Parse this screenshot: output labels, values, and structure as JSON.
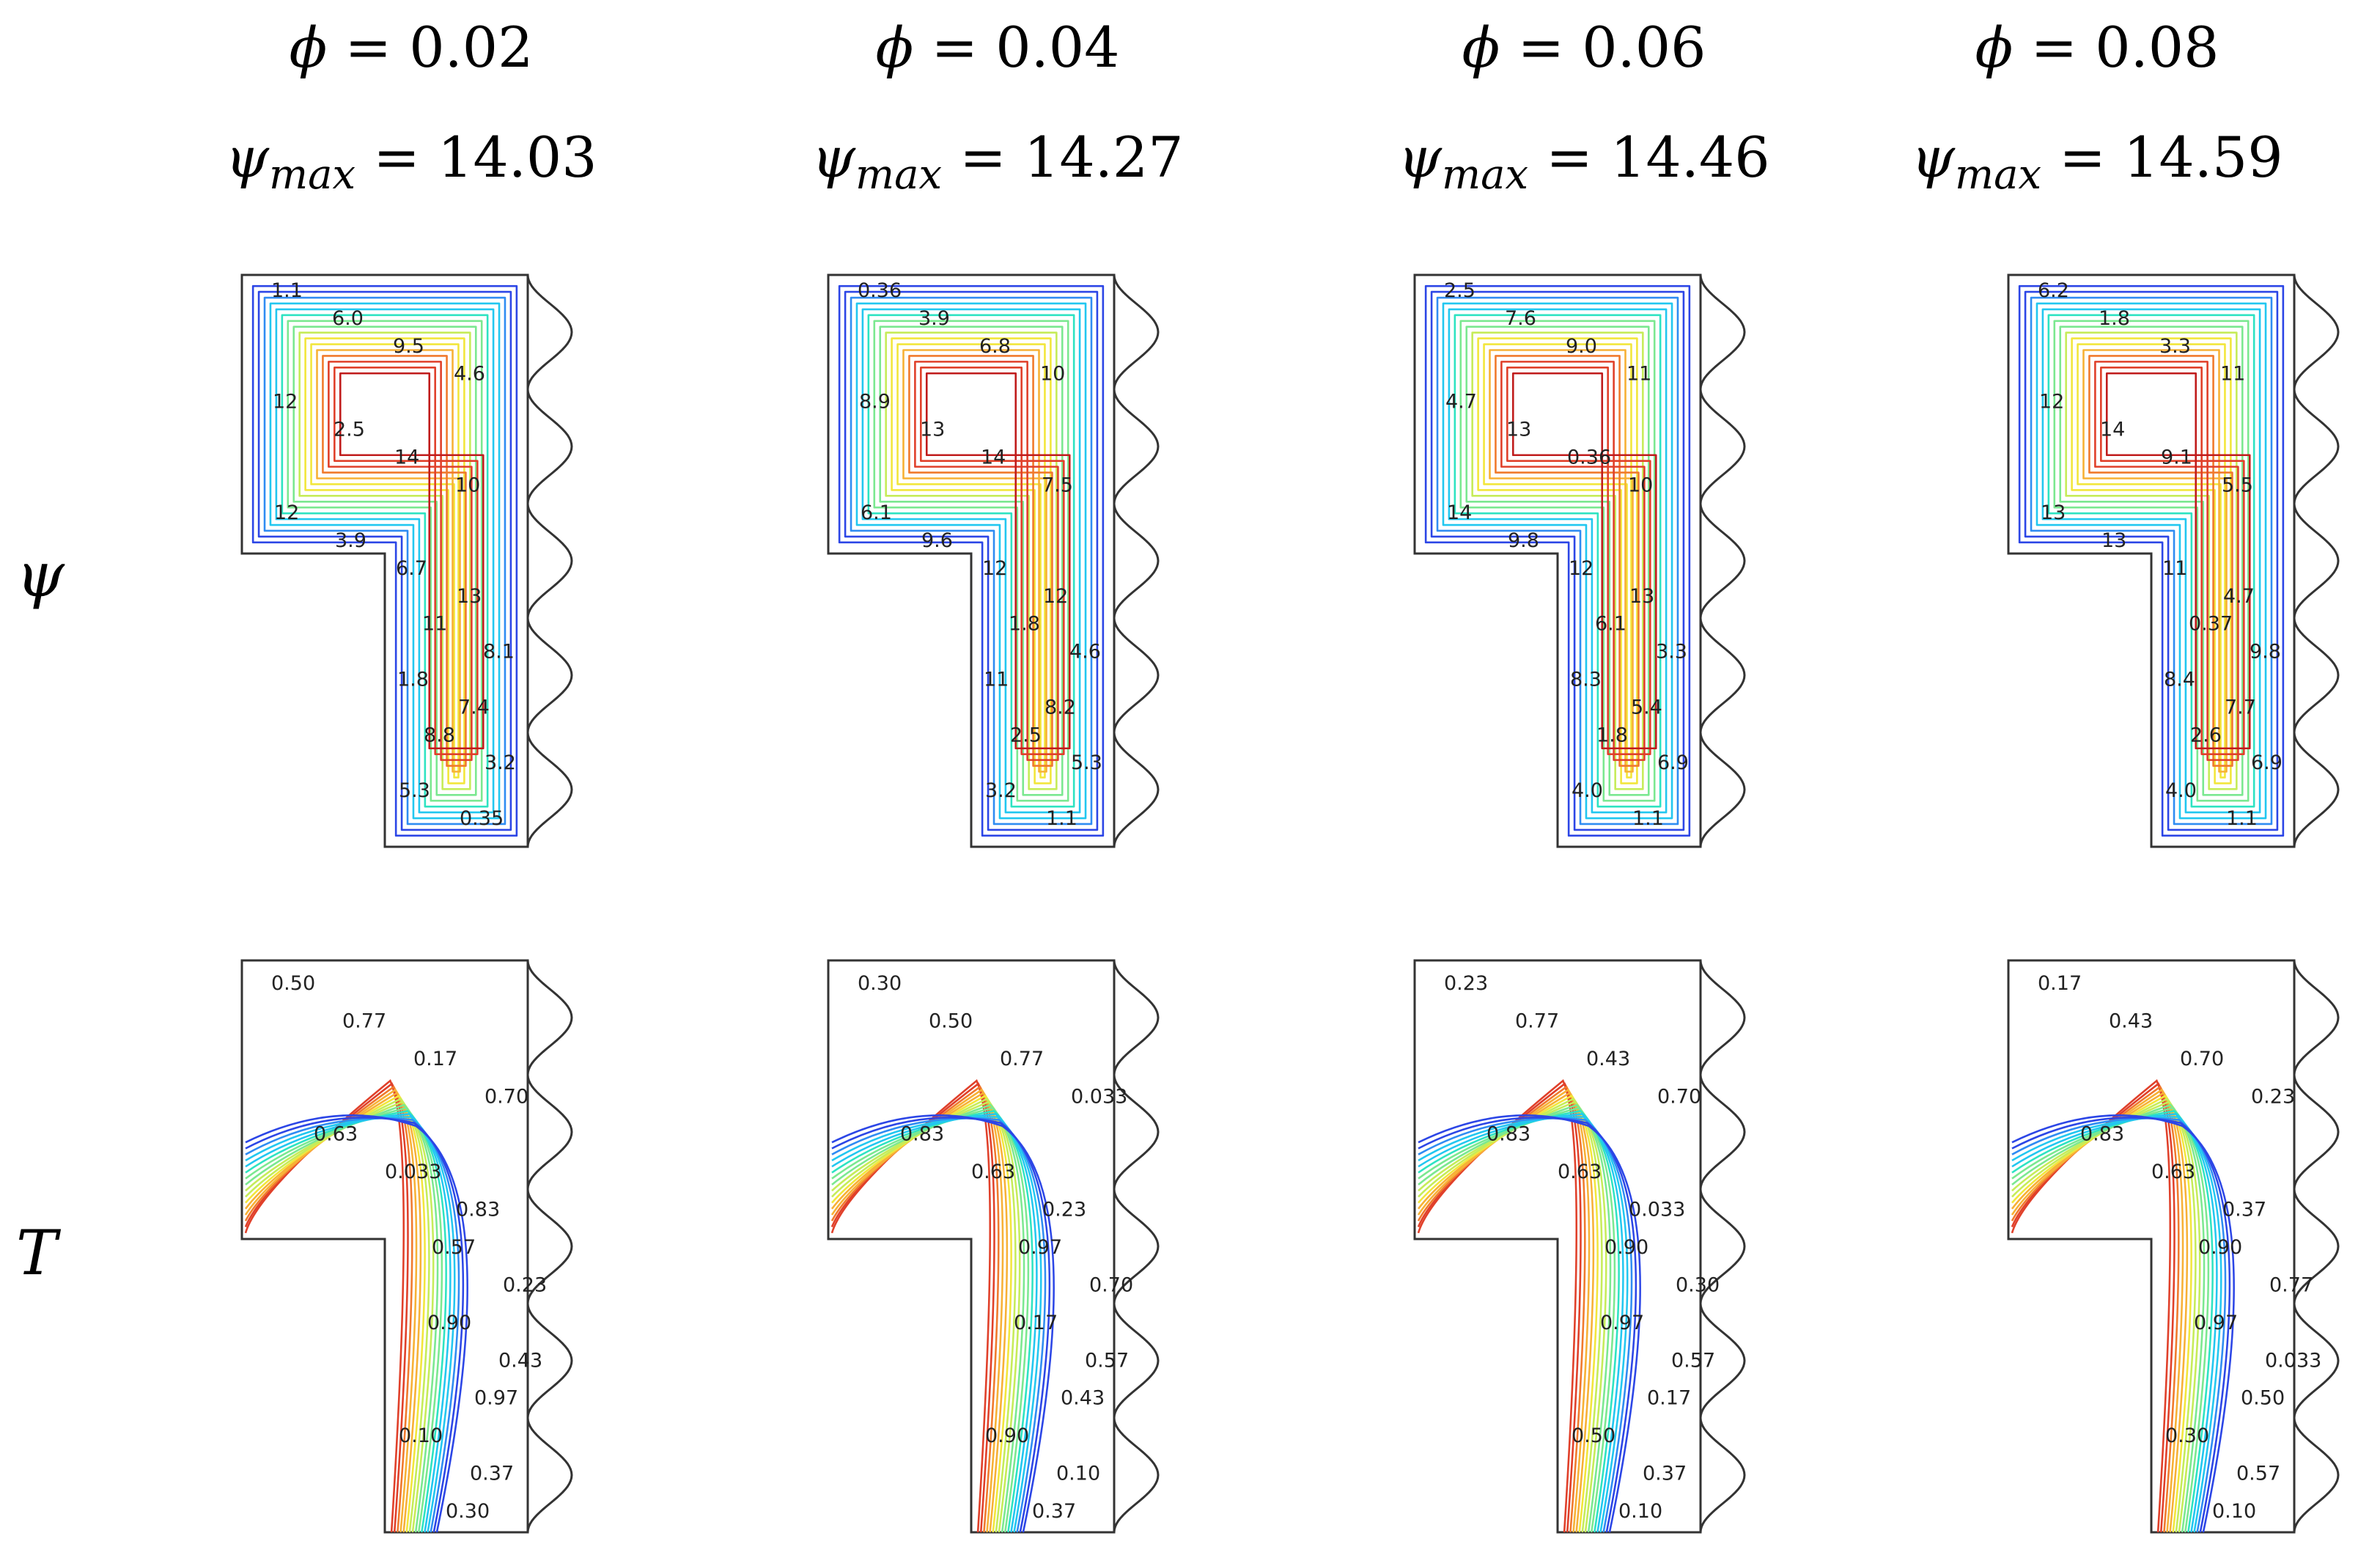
{
  "columns": [
    {
      "phi_symbol": "ϕ",
      "phi_value": "= 0.02",
      "psi_symbol": "ψ",
      "psi_sub": "max",
      "psi_value": "= 14.03",
      "psi_labels": [
        "1.1",
        "6.0",
        "9.5",
        "4.6",
        "12",
        "2.5",
        "14",
        "10",
        "12",
        "3.9",
        "6.7",
        "13",
        "11",
        "8.1",
        "1.8",
        "7.4",
        "8.8",
        "3.2",
        "5.3",
        "0.35"
      ],
      "t_labels": [
        "0.50",
        "0.77",
        "0.17",
        "0.70",
        "0.63",
        "0.033",
        "0.83",
        "0.57",
        "0.23",
        "0.90",
        "0.43",
        "0.97",
        "0.10",
        "0.37",
        "0.30"
      ]
    },
    {
      "phi_symbol": "ϕ",
      "phi_value": "= 0.04",
      "psi_symbol": "ψ",
      "psi_sub": "max",
      "psi_value": "= 14.27",
      "psi_labels": [
        "0.36",
        "3.9",
        "6.8",
        "10",
        "8.9",
        "13",
        "14",
        "7.5",
        "6.1",
        "9.6",
        "12",
        "12",
        "1.8",
        "4.6",
        "11",
        "8.2",
        "2.5",
        "5.3",
        "3.2",
        "1.1"
      ],
      "t_labels": [
        "0.30",
        "0.50",
        "0.77",
        "0.033",
        "0.83",
        "0.63",
        "0.23",
        "0.97",
        "0.70",
        "0.17",
        "0.57",
        "0.43",
        "0.90",
        "0.10",
        "0.37"
      ]
    },
    {
      "phi_symbol": "ϕ",
      "phi_value": "= 0.06",
      "psi_symbol": "ψ",
      "psi_sub": "max",
      "psi_value": "= 14.46",
      "psi_labels": [
        "2.5",
        "7.6",
        "9.0",
        "11",
        "4.7",
        "13",
        "0.36",
        "10",
        "14",
        "9.8",
        "12",
        "13",
        "6.1",
        "3.3",
        "8.3",
        "5.4",
        "1.8",
        "6.9",
        "4.0",
        "1.1"
      ],
      "t_labels": [
        "0.23",
        "0.77",
        "0.43",
        "0.70",
        "0.83",
        "0.63",
        "0.033",
        "0.90",
        "0.30",
        "0.97",
        "0.57",
        "0.17",
        "0.50",
        "0.37",
        "0.10"
      ]
    },
    {
      "phi_symbol": "ϕ",
      "phi_value": "= 0.08",
      "psi_symbol": "ψ",
      "psi_sub": "max",
      "psi_value": "= 14.59",
      "psi_labels": [
        "6.2",
        "1.8",
        "3.3",
        "11",
        "12",
        "14",
        "9.1",
        "5.5",
        "13",
        "13",
        "11",
        "4.7",
        "0.37",
        "9.8",
        "8.4",
        "7.7",
        "2.6",
        "6.9",
        "4.0",
        "1.1"
      ],
      "t_labels": [
        "0.17",
        "0.43",
        "0.70",
        "0.23",
        "0.83",
        "0.63",
        "0.37",
        "0.90",
        "0.77",
        "0.97",
        "0.033",
        "0.50",
        "0.30",
        "0.57",
        "0.10"
      ]
    }
  ],
  "rows": {
    "psi_label": "ψ",
    "t_label": "T"
  },
  "colors": {
    "outline": "#333333",
    "palette": [
      "#1d1ac8",
      "#2c46e6",
      "#2f8cf2",
      "#22c7f0",
      "#2ee3c2",
      "#7be890",
      "#c6ec59",
      "#f2e63c",
      "#f7b136",
      "#f07a2d",
      "#e0402a",
      "#c01c1c"
    ]
  }
}
